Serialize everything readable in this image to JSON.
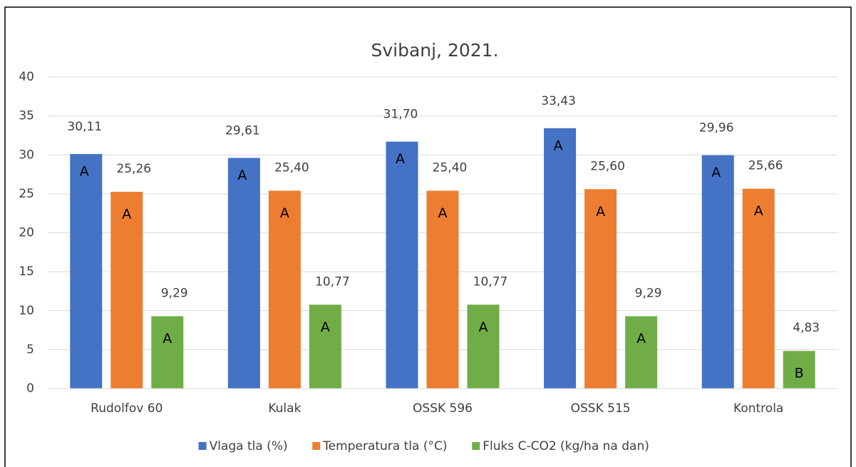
{
  "chart_data": {
    "type": "bar",
    "title": "Svibanj, 2021.",
    "categories": [
      "Rudolfov 60",
      "Kulak",
      "OSSK 596",
      "OSSK 515",
      "Kontrola"
    ],
    "series": [
      {
        "name": "Vlaga tla (%)",
        "color": "#4472c4",
        "values": [
          30.11,
          29.61,
          31.7,
          33.43,
          29.96
        ],
        "value_labels": [
          "30,11",
          "29,61",
          "31,70",
          "33,43",
          "29,96"
        ],
        "letters": [
          "A",
          "A",
          "A",
          "A",
          "A"
        ]
      },
      {
        "name": "Temperatura tla (°C)",
        "color": "#ed7d31",
        "values": [
          25.26,
          25.4,
          25.4,
          25.6,
          25.66
        ],
        "value_labels": [
          "25,26",
          "25,40",
          "25,40",
          "25,60",
          "25,66"
        ],
        "letters": [
          "A",
          "A",
          "A",
          "A",
          "A"
        ]
      },
      {
        "name": "Fluks C-CO2 (kg/ha na dan)",
        "color": "#70ad47",
        "values": [
          9.29,
          10.77,
          10.77,
          9.29,
          4.83
        ],
        "value_labels": [
          "9,29",
          "10,77",
          "10,77",
          "9,29",
          "4,83"
        ],
        "letters": [
          "A",
          "A",
          "A",
          "A",
          "B"
        ]
      }
    ],
    "ylim": [
      0,
      40
    ],
    "yticks": [
      0,
      5,
      10,
      15,
      20,
      25,
      30,
      35,
      40
    ],
    "grid": true,
    "legend": "bottom"
  }
}
